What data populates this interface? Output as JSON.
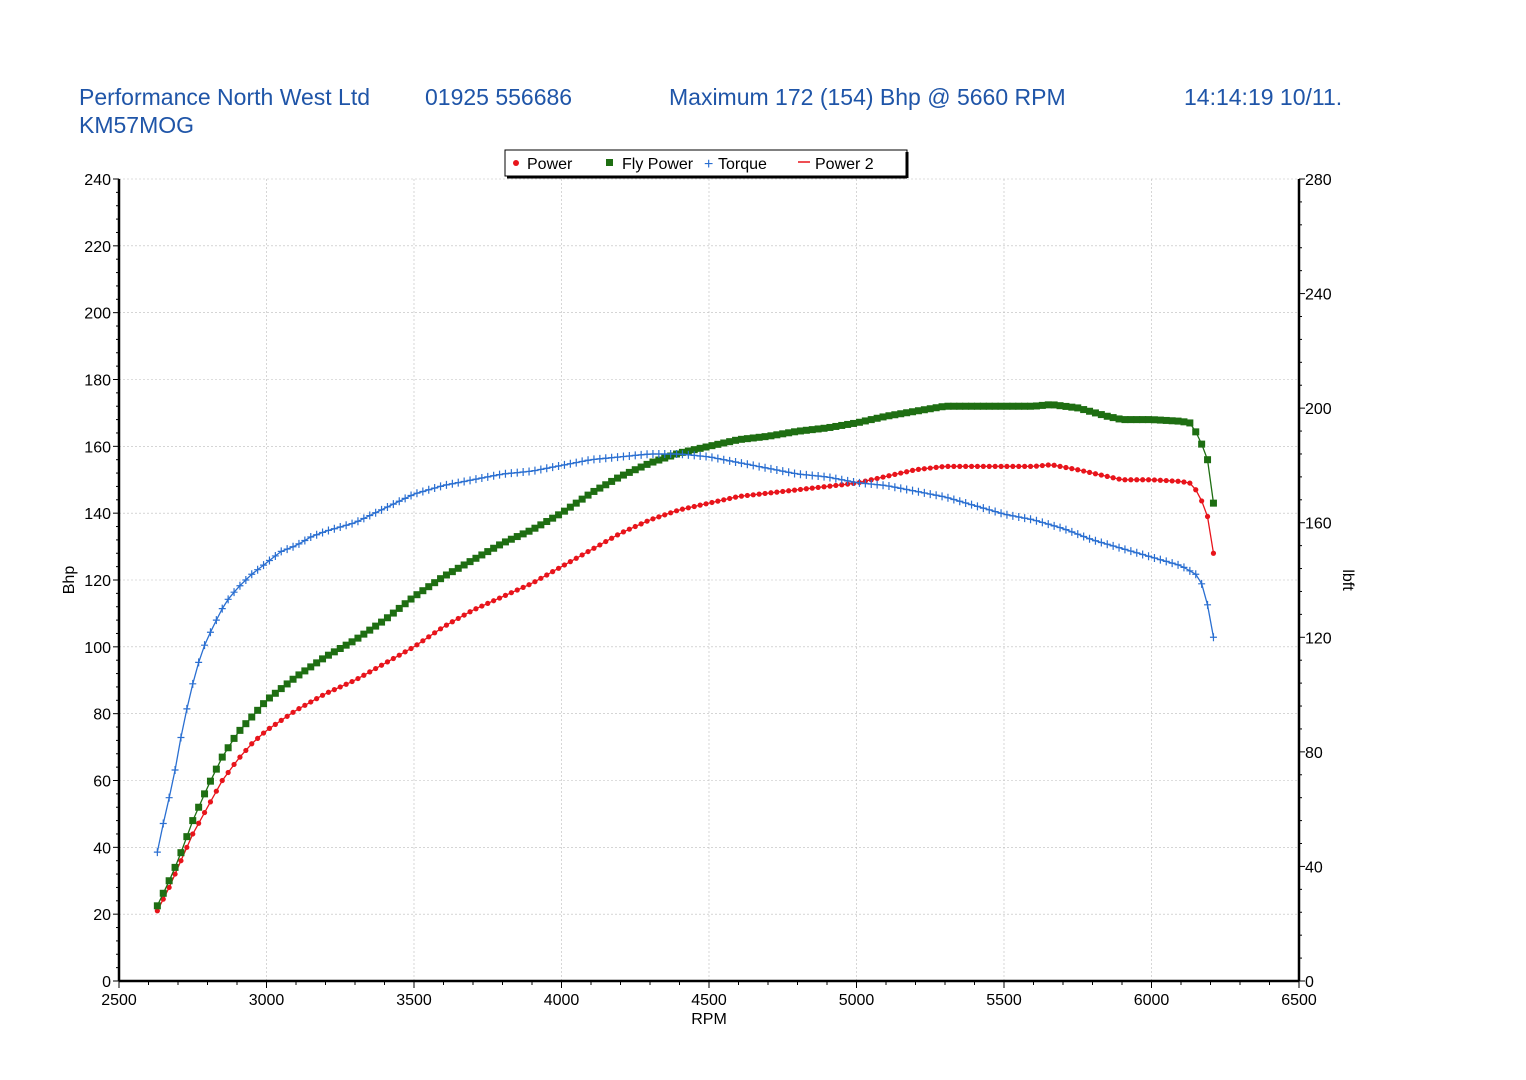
{
  "header": {
    "company": "Performance North West Ltd",
    "phone": "01925 556686",
    "maximum": "Maximum 172 (154) Bhp @ 5660 RPM",
    "timestamp": "14:14:19 10/11.",
    "registration": "KM57MOG"
  },
  "colors": {
    "header_text": "#1f55a8",
    "power": "#e8141b",
    "fly_power": "#1e6e12",
    "torque": "#2a6fd1",
    "power2": "#e8141b"
  },
  "chart_data": {
    "type": "line",
    "xlabel": "RPM",
    "ylabel": "Bhp",
    "y2label": "lbft",
    "xlim": [
      2500,
      6500
    ],
    "ylim": [
      0,
      240
    ],
    "y2lim": [
      0,
      280
    ],
    "x_ticks": [
      "2500",
      "3000",
      "3500",
      "4000",
      "4500",
      "5000",
      "5500",
      "6000",
      "6500"
    ],
    "y_ticks": [
      "0",
      "20",
      "40",
      "60",
      "80",
      "100",
      "120",
      "140",
      "160",
      "180",
      "200",
      "220",
      "240"
    ],
    "y2_ticks": [
      "0",
      "40",
      "80",
      "120",
      "160",
      "200",
      "240",
      "280"
    ],
    "grid": true,
    "legend_position": "top-center",
    "legend": [
      "Power",
      "Fly Power",
      "Torque",
      "Power 2"
    ],
    "series": [
      {
        "name": "Power",
        "axis": "left",
        "marker": "dot",
        "points": [
          [
            2630,
            21
          ],
          [
            2670,
            28
          ],
          [
            2700,
            34
          ],
          [
            2750,
            44
          ],
          [
            2800,
            52
          ],
          [
            2850,
            60
          ],
          [
            2900,
            66
          ],
          [
            2950,
            71
          ],
          [
            3000,
            75
          ],
          [
            3100,
            81
          ],
          [
            3200,
            86
          ],
          [
            3300,
            90
          ],
          [
            3400,
            95
          ],
          [
            3500,
            100
          ],
          [
            3600,
            106
          ],
          [
            3700,
            111
          ],
          [
            3800,
            115
          ],
          [
            3900,
            119
          ],
          [
            4000,
            124
          ],
          [
            4100,
            129
          ],
          [
            4200,
            134
          ],
          [
            4300,
            138
          ],
          [
            4400,
            141
          ],
          [
            4500,
            143
          ],
          [
            4600,
            145
          ],
          [
            4700,
            146
          ],
          [
            4800,
            147
          ],
          [
            4900,
            148
          ],
          [
            5000,
            149
          ],
          [
            5100,
            151
          ],
          [
            5200,
            153
          ],
          [
            5300,
            154
          ],
          [
            5400,
            154
          ],
          [
            5500,
            154
          ],
          [
            5600,
            154
          ],
          [
            5660,
            154.5
          ],
          [
            5750,
            153
          ],
          [
            5850,
            151
          ],
          [
            5900,
            150
          ],
          [
            6000,
            150
          ],
          [
            6100,
            149.5
          ],
          [
            6130,
            149
          ],
          [
            6160,
            146
          ],
          [
            6190,
            139
          ],
          [
            6210,
            128
          ]
        ]
      },
      {
        "name": "Fly Power",
        "axis": "left",
        "marker": "square",
        "points": [
          [
            2630,
            22.5
          ],
          [
            2670,
            30
          ],
          [
            2700,
            36
          ],
          [
            2750,
            48
          ],
          [
            2800,
            58
          ],
          [
            2850,
            67
          ],
          [
            2900,
            74
          ],
          [
            2950,
            79
          ],
          [
            3000,
            84
          ],
          [
            3100,
            91
          ],
          [
            3200,
            97
          ],
          [
            3300,
            102
          ],
          [
            3400,
            108
          ],
          [
            3500,
            115
          ],
          [
            3600,
            121
          ],
          [
            3700,
            126
          ],
          [
            3800,
            131
          ],
          [
            3900,
            135
          ],
          [
            4000,
            140
          ],
          [
            4100,
            146
          ],
          [
            4200,
            151
          ],
          [
            4300,
            155
          ],
          [
            4400,
            158
          ],
          [
            4500,
            160
          ],
          [
            4600,
            162
          ],
          [
            4700,
            163
          ],
          [
            4800,
            164.5
          ],
          [
            4900,
            165.5
          ],
          [
            5000,
            167
          ],
          [
            5100,
            169
          ],
          [
            5200,
            170.5
          ],
          [
            5300,
            172
          ],
          [
            5400,
            172
          ],
          [
            5500,
            172
          ],
          [
            5600,
            172
          ],
          [
            5660,
            172.5
          ],
          [
            5750,
            171.5
          ],
          [
            5850,
            169
          ],
          [
            5900,
            168
          ],
          [
            6000,
            168
          ],
          [
            6100,
            167.5
          ],
          [
            6130,
            167
          ],
          [
            6160,
            163
          ],
          [
            6190,
            156
          ],
          [
            6210,
            143
          ]
        ]
      },
      {
        "name": "Torque",
        "axis": "right",
        "marker": "plus",
        "points": [
          [
            2630,
            45
          ],
          [
            2660,
            60
          ],
          [
            2680,
            68
          ],
          [
            2710,
            85
          ],
          [
            2740,
            100
          ],
          [
            2780,
            115
          ],
          [
            2820,
            124
          ],
          [
            2860,
            132
          ],
          [
            2900,
            137
          ],
          [
            2950,
            142
          ],
          [
            3000,
            146
          ],
          [
            3050,
            150
          ],
          [
            3100,
            152
          ],
          [
            3150,
            155
          ],
          [
            3200,
            157
          ],
          [
            3300,
            160
          ],
          [
            3400,
            165
          ],
          [
            3500,
            170
          ],
          [
            3600,
            173
          ],
          [
            3700,
            175
          ],
          [
            3800,
            177
          ],
          [
            3900,
            178
          ],
          [
            4000,
            180
          ],
          [
            4100,
            182
          ],
          [
            4200,
            183
          ],
          [
            4300,
            184
          ],
          [
            4400,
            184
          ],
          [
            4500,
            183
          ],
          [
            4600,
            181
          ],
          [
            4700,
            179
          ],
          [
            4800,
            177
          ],
          [
            4900,
            176
          ],
          [
            5000,
            174
          ],
          [
            5100,
            173
          ],
          [
            5200,
            171
          ],
          [
            5300,
            169
          ],
          [
            5400,
            166
          ],
          [
            5500,
            163
          ],
          [
            5600,
            161
          ],
          [
            5700,
            158
          ],
          [
            5800,
            154
          ],
          [
            5900,
            151
          ],
          [
            6000,
            148
          ],
          [
            6100,
            145
          ],
          [
            6150,
            142
          ],
          [
            6180,
            137
          ],
          [
            6210,
            120
          ]
        ]
      },
      {
        "name": "Power 2",
        "axis": "left",
        "marker": "none",
        "points": []
      }
    ]
  }
}
